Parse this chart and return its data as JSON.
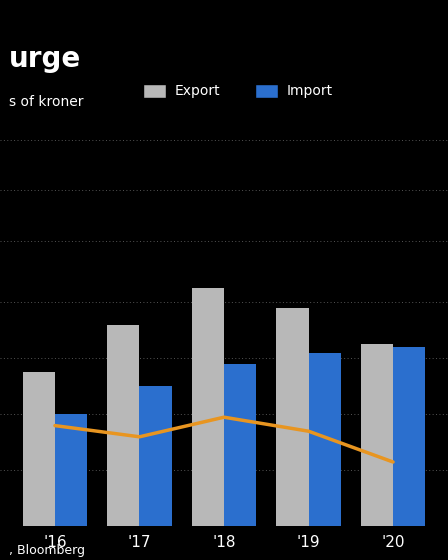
{
  "title": "urge",
  "ylabel": "s of kroner",
  "background_color": "#000000",
  "text_color": "#ffffff",
  "grid_color": "#555555",
  "years": [
    "'16",
    "'17",
    "'18",
    "'19",
    "'20"
  ],
  "export_values": [
    5.5,
    7.2,
    8.5,
    7.8,
    6.5
  ],
  "import_values": [
    4.0,
    5.0,
    5.8,
    6.2,
    6.4
  ],
  "line_values": [
    3.6,
    3.2,
    3.9,
    3.4,
    2.3
  ],
  "export_color": "#b8b8b8",
  "import_color": "#2b6fce",
  "line_color": "#e89520",
  "ylim": [
    0,
    10
  ],
  "yticks": [
    2,
    4,
    6,
    8
  ],
  "bar_width": 0.38,
  "title_fontsize": 20,
  "label_fontsize": 10,
  "tick_fontsize": 11,
  "legend_fontsize": 10,
  "source_text": ", Bloomberg"
}
